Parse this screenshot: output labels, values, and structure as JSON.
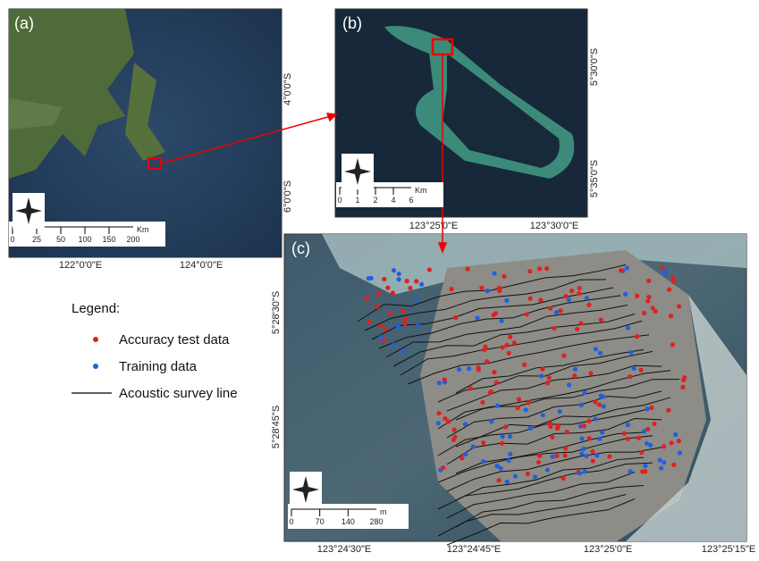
{
  "panels": [
    {
      "label": "(a)",
      "lat_labels": [
        "4°0'0\"S",
        "6°0'0\"S"
      ],
      "lon_labels": [
        "122°0'0\"E",
        "124°0'0\"E"
      ],
      "scale": {
        "ticks": [
          "0",
          "25",
          "50",
          "100",
          "150",
          "200"
        ],
        "unit": "Km"
      }
    },
    {
      "label": "(b)",
      "lat_labels": [
        "5°30'0\"S",
        "5°35'0\"S"
      ],
      "lon_labels": [
        "123°25'0\"E",
        "123°30'0\"E"
      ],
      "scale": {
        "ticks": [
          "0",
          "1",
          "2",
          "4",
          "6"
        ],
        "unit": "Km"
      }
    },
    {
      "label": "(c)",
      "lat_labels": [
        "5°28'30\"S",
        "5°28'45\"S"
      ],
      "lon_labels": [
        "123°24'30\"E",
        "123°24'45\"E",
        "123°25'0\"E",
        "123°25'15\"E"
      ],
      "scale": {
        "ticks": [
          "0",
          "70",
          "140",
          "280"
        ],
        "unit": "m"
      }
    }
  ],
  "legend": {
    "title": "Legend:",
    "items": [
      "Accuracy test data",
      "Training data",
      "Acoustic survey line"
    ]
  }
}
